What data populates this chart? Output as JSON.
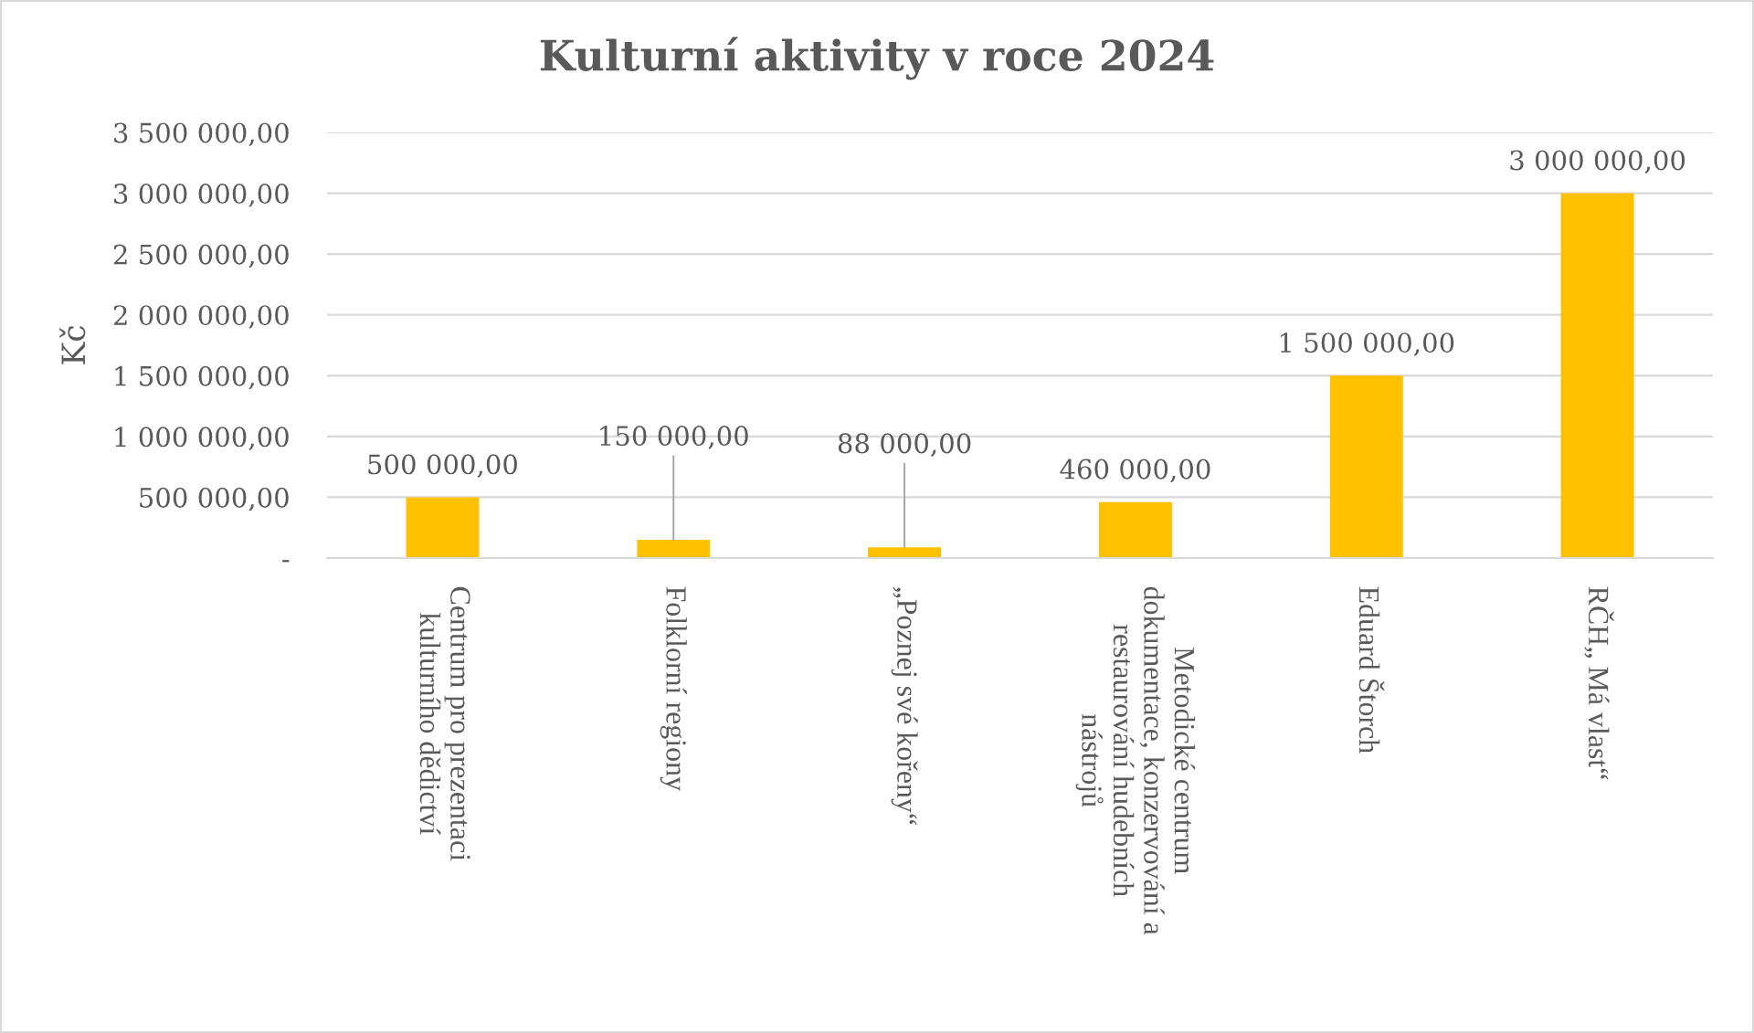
{
  "chart_data": {
    "type": "bar",
    "title": "Kulturní aktivity v roce 2024",
    "ylabel": "Kč",
    "categories": [
      "Centrum pro prezentaci\nkulturního dědictví",
      "Folklorní regiony",
      "„Poznej své kořeny“",
      "Metodické centrum\ndokumentace, konzervování a\nrestaurování hudebních\nnástrojů",
      "Eduard Štorch",
      "RČH„ Má vlast“"
    ],
    "values": [
      500000,
      150000,
      88000,
      460000,
      1500000,
      3000000
    ],
    "color": "#ffc000",
    "value_labels": [
      "500 000,00",
      "150 000,00",
      "88 000,00",
      "460 000,00",
      "1 500 000,00",
      "3 000 000,00"
    ],
    "ylim": [
      0,
      3500000
    ],
    "yticks": [
      {
        "value": 0,
        "label": "-"
      },
      {
        "value": 500000,
        "label": "500 000,00"
      },
      {
        "value": 1000000,
        "label": "1 000 000,00"
      },
      {
        "value": 1500000,
        "label": "1 500 000,00"
      },
      {
        "value": 2000000,
        "label": "2 000 000,00"
      },
      {
        "value": 2500000,
        "label": "2 500 000,00"
      },
      {
        "value": 3000000,
        "label": "3 000 000,00"
      },
      {
        "value": 3500000,
        "label": "3 500 000,00"
      }
    ],
    "grid": "y"
  }
}
